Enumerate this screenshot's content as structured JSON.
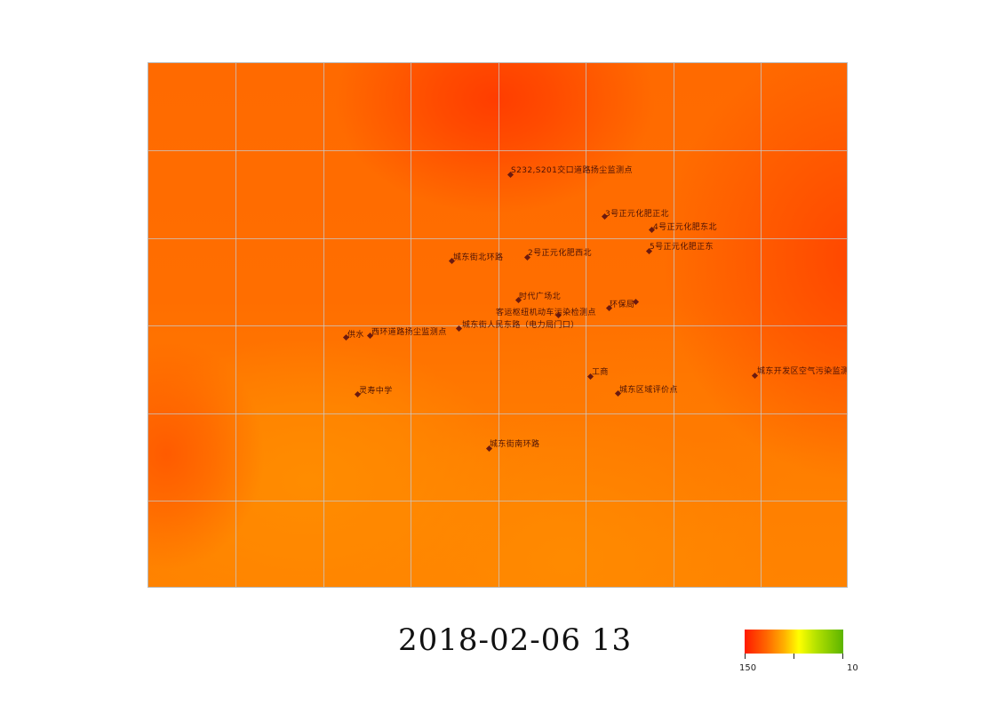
{
  "map": {
    "stations": [
      {
        "label": "S232,S201交口道路扬尘监测点"
      },
      {
        "label": "3号正元化肥正北"
      },
      {
        "label": "4号正元化肥东北"
      },
      {
        "label": "5号正元化肥正东"
      },
      {
        "label": "城东街北环路"
      },
      {
        "label": "2号正元化肥西北"
      },
      {
        "label": "时代广场北"
      },
      {
        "label": "环保局"
      },
      {
        "label": "客运枢纽机动车污染检测点"
      },
      {
        "label": "供水"
      },
      {
        "label": "西环道路扬尘监测点"
      },
      {
        "label": "城东街人民东路（电力局门口）"
      },
      {
        "label": "工商"
      },
      {
        "label": "城东开发区空气污染监测点"
      },
      {
        "label": "灵寿中学"
      },
      {
        "label": "城东区域评价点"
      },
      {
        "label": "城东街南环路"
      }
    ]
  },
  "timestamp": "2018-02-06  13",
  "legend": {
    "min_label": "150",
    "max_label": "10",
    "colors": [
      "#ff1a00",
      "#ff6600",
      "#ffff00",
      "#5cb400"
    ]
  }
}
